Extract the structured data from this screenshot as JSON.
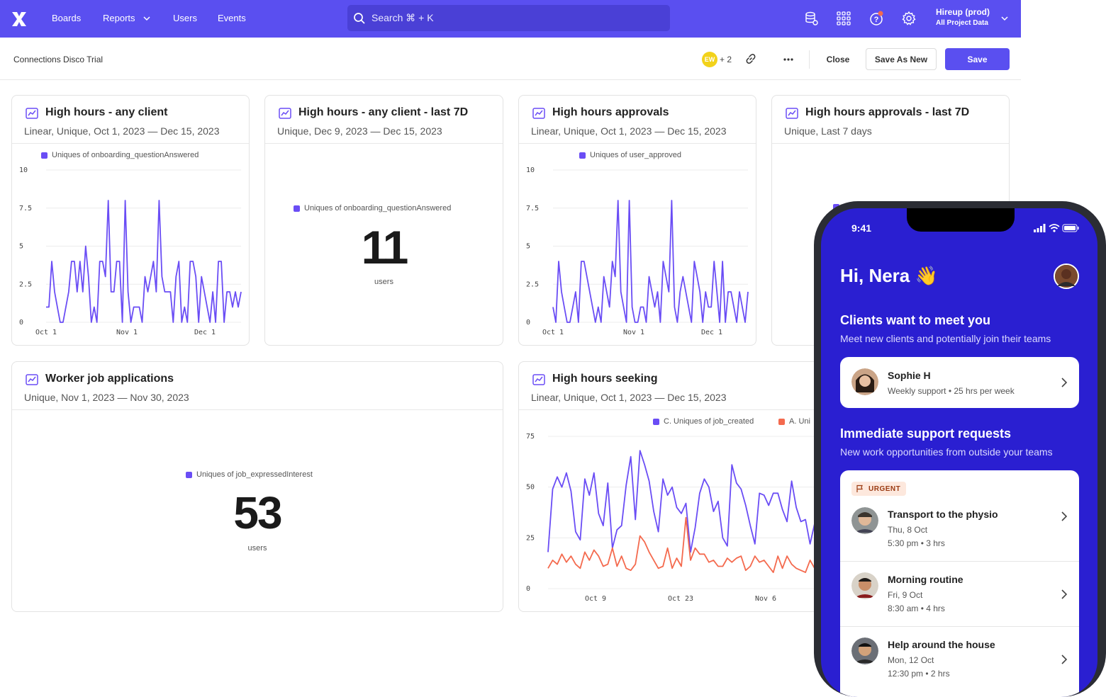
{
  "topbar": {
    "nav": [
      "Boards",
      "Reports",
      "Users",
      "Events"
    ],
    "search_label": "Search ⌘ + K",
    "project_name": "Hireup (prod)",
    "project_scope": "All Project Data"
  },
  "subbar": {
    "board_name": "Connections Disco Trial",
    "avatar_initials": "EW",
    "avatar_more": "+ 2",
    "close_label": "Close",
    "save_as_new_label": "Save As New",
    "save_label": "Save"
  },
  "cards": [
    {
      "title": "High hours - any client",
      "subtitle": "Linear, Unique, Oct 1, 2023 — Dec 15, 2023",
      "legend": "Uniques of onboarding_questionAnswered"
    },
    {
      "title": "High hours - any client - last 7D",
      "subtitle": "Unique, Dec 9, 2023 — Dec 15, 2023",
      "legend": "Uniques of onboarding_questionAnswered",
      "value": "11",
      "unit": "users"
    },
    {
      "title": "High hours approvals",
      "subtitle": "Linear, Unique, Oct 1, 2023 — Dec 15, 2023",
      "legend": "Uniques of user_approved"
    },
    {
      "title": "High hours approvals - last 7D",
      "subtitle": "Unique, Last 7 days"
    },
    {
      "title": "Worker job applications",
      "subtitle": "Unique, Nov 1, 2023 — Nov 30, 2023",
      "legend": "Uniques of job_expressedInterest",
      "value": "53",
      "unit": "users"
    },
    {
      "title": "High hours seeking",
      "subtitle": "Linear, Unique, Oct 1, 2023 — Dec 15, 2023",
      "legend_c": "C. Uniques of job_created",
      "legend_a": "A. Uni"
    }
  ],
  "chart_data": [
    {
      "type": "line",
      "title": "High hours - any client",
      "x_ticks": [
        "Oct 1",
        "Nov 1",
        "Dec 1"
      ],
      "y_ticks": [
        "0",
        "2.5",
        "5",
        "7.5",
        "10"
      ],
      "ylim": [
        0,
        10
      ],
      "series": [
        {
          "name": "Uniques of onboarding_questionAnswered",
          "color": "#6a4df5",
          "values": [
            1,
            1,
            4,
            2,
            1,
            0,
            0,
            1,
            2,
            4,
            4,
            2,
            4,
            2,
            5,
            3,
            0,
            1,
            0,
            4,
            4,
            3,
            8,
            2,
            2,
            4,
            4,
            0,
            8,
            2,
            0,
            1,
            1,
            1,
            0,
            3,
            2,
            3,
            4,
            2,
            8,
            3,
            2,
            2,
            2,
            0,
            3,
            4,
            0,
            1,
            0,
            4,
            4,
            3,
            0,
            3,
            2,
            1,
            0,
            2,
            0,
            4,
            4,
            0,
            2,
            2,
            1,
            2,
            1,
            2
          ]
        }
      ]
    },
    {
      "type": "line",
      "title": "High hours approvals",
      "x_ticks": [
        "Oct 1",
        "Nov 1",
        "Dec 1"
      ],
      "y_ticks": [
        "0",
        "2.5",
        "5",
        "7.5",
        "10"
      ],
      "ylim": [
        0,
        10
      ],
      "series": [
        {
          "name": "Uniques of user_approved",
          "color": "#6a4df5",
          "values": [
            1,
            0,
            4,
            2,
            1,
            0,
            0,
            1,
            2,
            0,
            4,
            4,
            3,
            2,
            1,
            0,
            1,
            0,
            3,
            2,
            1,
            4,
            3,
            8,
            2,
            1,
            0,
            8,
            1,
            0,
            0,
            1,
            1,
            0,
            3,
            2,
            1,
            2,
            0,
            4,
            3,
            2,
            8,
            1,
            0,
            2,
            3,
            2,
            1,
            0,
            4,
            3,
            2,
            0,
            2,
            1,
            1,
            4,
            2,
            0,
            4,
            0,
            2,
            2,
            1,
            0,
            2,
            1,
            0,
            2
          ]
        }
      ]
    },
    {
      "type": "line",
      "title": "High hours seeking",
      "x_ticks": [
        "Oct 9",
        "Oct 23",
        "Nov 6"
      ],
      "y_ticks": [
        "0",
        "25",
        "50",
        "75"
      ],
      "ylim": [
        0,
        75
      ],
      "series": [
        {
          "name": "C. Uniques of job_created",
          "color": "#6a4df5",
          "values": [
            18,
            49,
            55,
            50,
            57,
            48,
            28,
            24,
            54,
            46,
            57,
            37,
            31,
            52,
            20,
            29,
            31,
            51,
            65,
            34,
            68,
            61,
            53,
            38,
            28,
            54,
            46,
            50,
            40,
            37,
            42,
            18,
            30,
            47,
            54,
            50,
            38,
            43,
            25,
            21,
            61,
            52,
            49,
            41,
            31,
            22,
            47,
            46,
            41,
            47,
            47,
            39,
            33,
            53,
            40,
            33,
            34,
            22,
            32,
            51,
            31
          ]
        },
        {
          "name": "A. Uni",
          "color": "#f46a4e",
          "values": [
            10,
            14,
            12,
            17,
            13,
            16,
            12,
            10,
            18,
            14,
            19,
            16,
            11,
            12,
            20,
            11,
            16,
            10,
            9,
            12,
            26,
            23,
            18,
            14,
            10,
            11,
            20,
            10,
            15,
            11,
            35,
            14,
            20,
            17,
            17,
            13,
            14,
            11,
            11,
            15,
            13,
            15,
            16,
            9,
            11,
            16,
            13,
            14,
            11,
            8,
            16,
            10,
            16,
            12,
            10,
            9,
            8,
            14,
            10,
            13,
            13
          ]
        }
      ]
    }
  ],
  "phone": {
    "time": "9:41",
    "greeting": "Hi, Nera 👋",
    "section1_title": "Clients want to meet you",
    "section1_desc": "Meet new clients and potentially join their teams",
    "client": {
      "name": "Sophie H",
      "meta": "Weekly support • 25 hrs per week"
    },
    "section2_title": "Immediate support requests",
    "section2_desc": "New work opportunities from outside your teams",
    "urgent_label": "URGENT",
    "requests": [
      {
        "title": "Transport to the physio",
        "date": "Thu, 8 Oct",
        "time": "5:30 pm • 3 hrs"
      },
      {
        "title": "Morning routine",
        "date": "Fri, 9 Oct",
        "time": "8:30 am • 4 hrs"
      },
      {
        "title": "Help around the house",
        "date": "Mon, 12 Oct",
        "time": "12:30 pm • 2 hrs"
      }
    ]
  }
}
